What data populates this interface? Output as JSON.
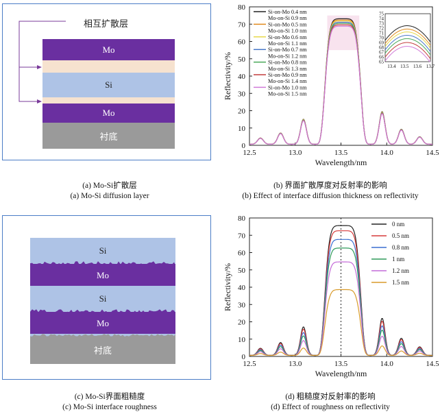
{
  "panel_a": {
    "label_interdiffusion": "相互扩散层",
    "layers": [
      "Mo",
      "Si",
      "Mo",
      "衬底"
    ],
    "caption_cn": "(a) Mo-Si扩散层",
    "caption_en": "(a) Mo-Si diffusion layer"
  },
  "panel_b": {
    "caption_cn": "(b) 界面扩散厚度对反射率的影响",
    "caption_en": "(b) Effect of interface diffusion thickness on reflectivity"
  },
  "panel_c": {
    "layers": [
      "Si",
      "Mo",
      "Si",
      "Mo",
      "衬底"
    ],
    "caption_cn": "(c) Mo-Si界面粗糙度",
    "caption_en": "(c) Mo-Si interface roughness"
  },
  "panel_d": {
    "caption_cn": "(d) 粗糙度对反射率的影响",
    "caption_en": "(d) Effect of roughness on reflectivity"
  },
  "colors": {
    "frame": "#4a7cc6",
    "mo": "#6a2fa0",
    "si": "#aec3e6",
    "substrate": "#9a9a9a",
    "interdiff": "#f6e2cf",
    "arrow": "#7a3a9a"
  },
  "chart_data": [
    {
      "type": "line",
      "title": "",
      "xlabel": "Wavelength/nm",
      "ylabel": "Reflectivity/%",
      "xlim": [
        12.5,
        14.5
      ],
      "ylim": [
        0,
        80
      ],
      "xticks": [
        "12.5",
        "13.0",
        "13.5",
        "14.0",
        "14.5"
      ],
      "yticks": [
        "0",
        "10",
        "20",
        "30",
        "40",
        "50",
        "60",
        "70",
        "80"
      ],
      "legend": "top-left",
      "series": [
        {
          "name": "Si-on-Mo 0.4 nm / Mo-on-Si 0.9 nm",
          "color": "#222222",
          "peak": 72.5
        },
        {
          "name": "Si-on-Mo 0.5 nm / Mo-on-Si 1.0 nm",
          "color": "#e08a1c",
          "peak": 71.8
        },
        {
          "name": "Si-on-Mo 0.6 nm / Mo-on-Si 1.1 nm",
          "color": "#e7d84a",
          "peak": 71.2
        },
        {
          "name": "Si-on-Mo 0.7 nm / Mo-on-Si 1.2 nm",
          "color": "#4a78c8",
          "peak": 70.5
        },
        {
          "name": "Si-on-Mo 0.8 nm / Mo-on-Si 1.3 nm",
          "color": "#48a858",
          "peak": 69.8
        },
        {
          "name": "Si-on-Mo 0.9 nm / Mo-on-Si 1.4 nm",
          "color": "#c43c3c",
          "peak": 69.0
        },
        {
          "name": "Si-on-Mo 1.0 nm / Mo-on-Si 1.5 nm",
          "color": "#d07ad8",
          "peak": 68.2
        }
      ],
      "legend_lines": [
        "Si-on-Mo 0.4 nm",
        "Mo-on-Si 0.9 nm",
        "Si-on-Mo 0.5 nm",
        "Mo-on-Si 1.0 nm",
        "Si-on-Mo 0.6 nm",
        "Mo-on-Si 1.1 nm",
        "Si-on-Mo 0.7 nm",
        "Mo-on-Si 1.2 nm",
        "Si-on-Mo 0.8 nm",
        "Mo-on-Si 1.3 nm",
        "Si-on-Mo 0.9 nm",
        "Mo-on-Si 1.4 nm",
        "Si-on-Mo 1.0 nm",
        "Mo-on-Si 1.5 nm"
      ],
      "inset": {
        "xlim": [
          13.35,
          13.7
        ],
        "ylim": [
          65,
          75
        ],
        "xticks": [
          "13.4",
          "13.5",
          "13.6",
          "13.7"
        ],
        "yticks": [
          "65",
          "66",
          "67",
          "68",
          "69",
          "70",
          "71",
          "72",
          "73",
          "74",
          "75"
        ]
      }
    },
    {
      "type": "line",
      "title": "",
      "xlabel": "Wavelength/nm",
      "ylabel": "Reflectivity/%",
      "xlim": [
        12.5,
        14.5
      ],
      "ylim": [
        0,
        80
      ],
      "xticks": [
        "12.5",
        "13.0",
        "13.5",
        "14.0",
        "14.5"
      ],
      "yticks": [
        "0",
        "10",
        "20",
        "30",
        "40",
        "50",
        "60",
        "70",
        "80"
      ],
      "legend": "top-right",
      "series": [
        {
          "name": "0 nm",
          "color": "#222222",
          "peak": 75
        },
        {
          "name": "0.5 nm",
          "color": "#d63a3a",
          "peak": 72
        },
        {
          "name": "0.8 nm",
          "color": "#3a6fd0",
          "peak": 67
        },
        {
          "name": "1 nm",
          "color": "#2f9a5a",
          "peak": 62
        },
        {
          "name": "1.2 nm",
          "color": "#c46ad8",
          "peak": 54
        },
        {
          "name": "1.5 nm",
          "color": "#d89a2a",
          "peak": 38
        }
      ],
      "marker_line_x": 13.5
    }
  ]
}
